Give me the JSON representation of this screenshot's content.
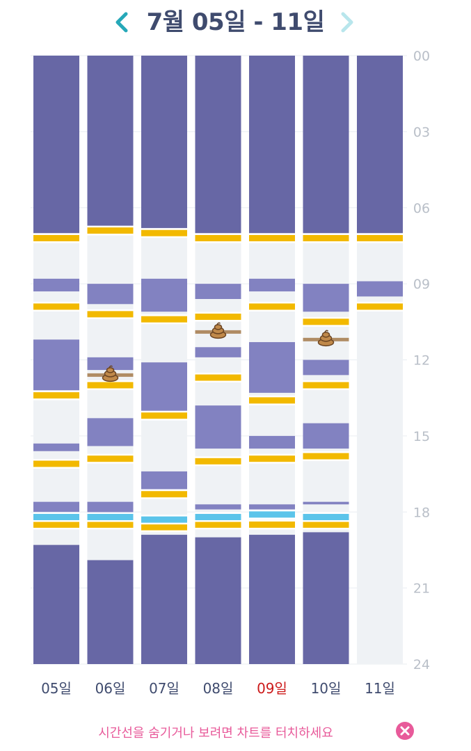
{
  "header": {
    "title": "7월 05일 - 11일",
    "prev_icon": "chevron-left-icon",
    "next_icon": "chevron-right-icon"
  },
  "footer": {
    "hint": "시간선을 숨기거나 보려면 차트를 터치하세요",
    "close_icon": "close-circle-icon"
  },
  "colors": {
    "sleep_dark": "#6767a5",
    "sleep_light": "#8282c1",
    "awake": "#eff2f5",
    "feeding": "#f2b900",
    "bath": "#5bc4ea",
    "poop": "#b08c64",
    "weekend_label": "#cc1a1a",
    "day_label": "#3f4b6e",
    "hour_label": "#b9bfc8",
    "nav_prev": "#26a8b8",
    "nav_next": "#b8e6ec"
  },
  "chart_data": {
    "type": "timeline",
    "y_axis": {
      "unit": "hour",
      "range": [
        0,
        24
      ],
      "ticks": [
        "00",
        "03",
        "06",
        "09",
        "12",
        "15",
        "18",
        "21",
        "24"
      ]
    },
    "days": [
      {
        "label": "05일",
        "highlight": false,
        "sleep": [
          [
            0,
            7.0
          ],
          [
            8.8,
            9.3
          ],
          [
            11.2,
            13.2
          ],
          [
            15.3,
            15.6
          ],
          [
            17.6,
            18.0
          ],
          [
            19.3,
            24
          ]
        ],
        "feed": [
          7.2,
          9.9,
          13.4,
          16.1,
          18.5
        ],
        "bath": [
          18.2
        ],
        "poop": []
      },
      {
        "label": "06일",
        "highlight": false,
        "sleep": [
          [
            0,
            6.8
          ],
          [
            9.0,
            9.8
          ],
          [
            11.9,
            12.4
          ],
          [
            14.3,
            15.4
          ],
          [
            17.6,
            18.1
          ],
          [
            19.9,
            24
          ]
        ],
        "feed": [
          6.9,
          10.2,
          13.0,
          15.9,
          18.5
        ],
        "bath": [
          18.2
        ],
        "poop": [
          12.6
        ]
      },
      {
        "label": "07일",
        "highlight": false,
        "sleep": [
          [
            0,
            6.8
          ],
          [
            8.8,
            10.1
          ],
          [
            12.1,
            14.1
          ],
          [
            16.4,
            17.1
          ],
          [
            18.9,
            24
          ]
        ],
        "feed": [
          7.0,
          10.4,
          14.2,
          17.3,
          18.6
        ],
        "bath": [
          18.3
        ],
        "poop": []
      },
      {
        "label": "08일",
        "highlight": false,
        "sleep": [
          [
            0,
            7.0
          ],
          [
            9.0,
            9.6
          ],
          [
            11.5,
            11.9
          ],
          [
            13.8,
            15.5
          ],
          [
            17.7,
            17.9
          ],
          [
            19.0,
            24
          ]
        ],
        "feed": [
          7.2,
          10.3,
          12.7,
          16.0,
          18.5
        ],
        "bath": [
          18.2
        ],
        "poop": [
          10.9
        ]
      },
      {
        "label": "09일",
        "highlight": true,
        "sleep": [
          [
            0,
            7.0
          ],
          [
            8.8,
            9.3
          ],
          [
            11.3,
            13.3
          ],
          [
            15.0,
            15.5
          ],
          [
            17.7,
            17.9
          ],
          [
            18.9,
            24
          ]
        ],
        "feed": [
          7.2,
          9.9,
          13.6,
          15.9,
          18.5
        ],
        "bath": [
          18.1
        ],
        "poop": []
      },
      {
        "label": "10일",
        "highlight": false,
        "sleep": [
          [
            0,
            7.0
          ],
          [
            9.0,
            10.1
          ],
          [
            12.0,
            12.6
          ],
          [
            14.5,
            15.5
          ],
          [
            17.6,
            17.7
          ],
          [
            18.8,
            24
          ]
        ],
        "feed": [
          7.2,
          10.5,
          13.0,
          15.8,
          18.5
        ],
        "bath": [
          18.2
        ],
        "poop": [
          11.2
        ]
      },
      {
        "label": "11일",
        "highlight": false,
        "sleep": [
          [
            0,
            7.0
          ],
          [
            8.9,
            9.5
          ]
        ],
        "feed": [
          7.2,
          9.9
        ],
        "bath": [],
        "poop": []
      }
    ]
  }
}
